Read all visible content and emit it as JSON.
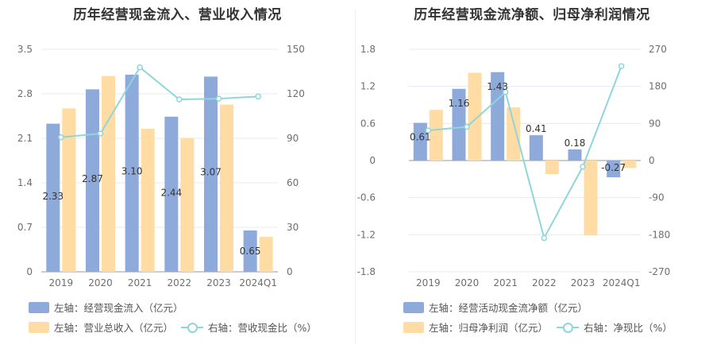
{
  "chart_data": [
    {
      "type": "bar+line",
      "title": "历年经营现金流入、营业收入情况",
      "categories": [
        "2019",
        "2020",
        "2021",
        "2022",
        "2023",
        "2024Q1"
      ],
      "left_axis": {
        "min": 0,
        "max": 3.5,
        "ticks": [
          "0",
          "0.7",
          "1.4",
          "2.1",
          "2.8",
          "3.5"
        ]
      },
      "right_axis": {
        "min": 0,
        "max": 150,
        "ticks": [
          "0",
          "30",
          "60",
          "90",
          "120",
          "150"
        ]
      },
      "series": [
        {
          "name": "左轴：经营现金流入（亿元）",
          "axis": "left",
          "kind": "bar",
          "color": "#8eaadb",
          "values": [
            2.33,
            2.87,
            3.1,
            2.44,
            3.07,
            0.65
          ],
          "labels": [
            "2.33",
            "2.87",
            "3.10",
            "2.44",
            "3.07",
            "0.65"
          ]
        },
        {
          "name": "左轴：营业总收入（亿元）",
          "axis": "left",
          "kind": "bar",
          "color": "#ffdca3",
          "values": [
            2.57,
            3.08,
            2.25,
            2.1,
            2.63,
            0.55
          ]
        },
        {
          "name": "右轴：营收现金比（%）",
          "axis": "right",
          "kind": "line",
          "color": "#8fd6da",
          "values": [
            90.7,
            93.2,
            137.8,
            116.2,
            116.7,
            118.2
          ]
        }
      ]
    },
    {
      "type": "bar+line",
      "title": "历年经营现金流净额、归母净利润情况",
      "categories": [
        "2019",
        "2020",
        "2021",
        "2022",
        "2023",
        "2024Q1"
      ],
      "left_axis": {
        "min": -1.8,
        "max": 1.8,
        "ticks": [
          "-1.8",
          "-1.2",
          "-0.6",
          "0",
          "0.6",
          "1.2",
          "1.8"
        ]
      },
      "right_axis": {
        "min": -270,
        "max": 270,
        "ticks": [
          "-270",
          "-180",
          "-90",
          "0",
          "90",
          "180",
          "270"
        ]
      },
      "series": [
        {
          "name": "左轴：经营活动现金流净额（亿元）",
          "axis": "left",
          "kind": "bar",
          "color": "#8eaadb",
          "values": [
            0.61,
            1.16,
            1.43,
            0.41,
            0.18,
            -0.27
          ],
          "labels": [
            "0.61",
            "1.16",
            "1.43",
            "0.41",
            "0.18",
            "-0.27"
          ]
        },
        {
          "name": "左轴：归母净利润（亿元）",
          "axis": "left",
          "kind": "bar",
          "color": "#ffdca3",
          "values": [
            0.82,
            1.42,
            0.86,
            -0.22,
            -1.21,
            -0.12
          ]
        },
        {
          "name": "右轴：净现比（%）",
          "axis": "right",
          "kind": "line",
          "color": "#8fd6da",
          "values": [
            73,
            82,
            166,
            -188,
            -15,
            229
          ]
        }
      ]
    }
  ]
}
